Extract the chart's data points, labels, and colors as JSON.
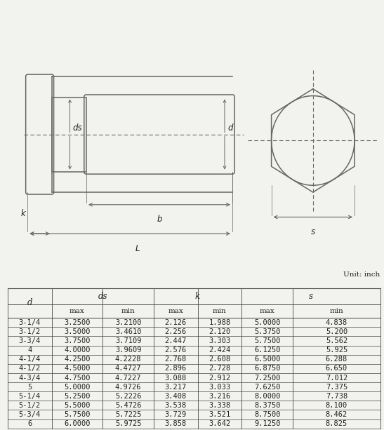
{
  "unit_label": "Unit: inch",
  "rows": [
    [
      "3-1/4",
      "3.2500",
      "3.2100",
      "2.126",
      "1.988",
      "5.0000",
      "4.838"
    ],
    [
      "3-1/2",
      "3.5000",
      "3.4610",
      "2.256",
      "2.120",
      "5.3750",
      "5.200"
    ],
    [
      "3-3/4",
      "3.7500",
      "3.7109",
      "2.447",
      "3.303",
      "5.7500",
      "5.562"
    ],
    [
      "4",
      "4.0000",
      "3.9609",
      "2.576",
      "2.424",
      "6.1250",
      "5.925"
    ],
    [
      "4-1/4",
      "4.2500",
      "4.2228",
      "2.768",
      "2.608",
      "6.5000",
      "6.288"
    ],
    [
      "4-1/2",
      "4.5000",
      "4.4727",
      "2.896",
      "2.728",
      "6.8750",
      "6.650"
    ],
    [
      "4-3/4",
      "4.7500",
      "4.7227",
      "3.088",
      "2.912",
      "7.2500",
      "7.012"
    ],
    [
      "5",
      "5.0000",
      "4.9726",
      "3.217",
      "3.033",
      "7.6250",
      "7.375"
    ],
    [
      "5-1/4",
      "5.2500",
      "5.2226",
      "3.408",
      "3.216",
      "8.0000",
      "7.738"
    ],
    [
      "5-1/2",
      "5.5000",
      "5.4726",
      "3.538",
      "3.338",
      "8.3750",
      "8.100"
    ],
    [
      "5-3/4",
      "5.7500",
      "5.7225",
      "3.729",
      "3.521",
      "8.7500",
      "8.462"
    ],
    [
      "6",
      "6.0000",
      "5.9725",
      "3.858",
      "3.642",
      "9.1250",
      "8.825"
    ]
  ],
  "bg_color": "#f2f2ee",
  "line_color": "#666666",
  "text_color": "#222222",
  "font_size": 8.5
}
